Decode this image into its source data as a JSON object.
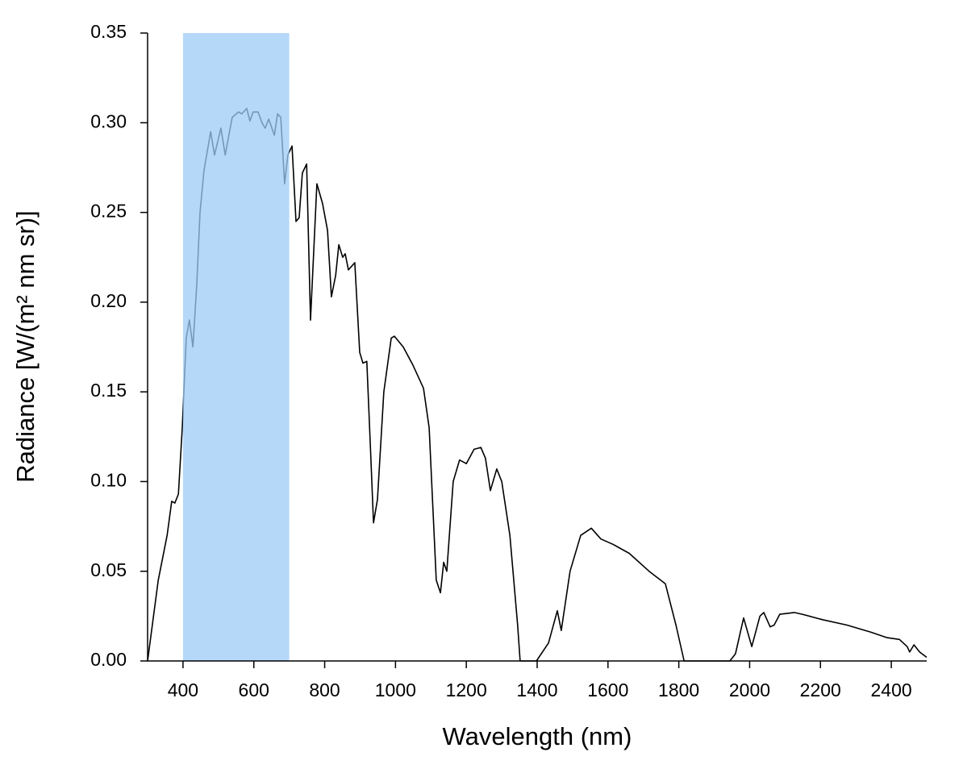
{
  "chart_data": {
    "type": "line",
    "xlabel": "Wavelength (nm)",
    "ylabel": "Radiance [W/(m² nm sr)]",
    "xlim": [
      300,
      2500
    ],
    "ylim": [
      0,
      0.35
    ],
    "xticks": [
      400,
      600,
      800,
      1000,
      1200,
      1400,
      1600,
      1800,
      2000,
      2200,
      2400
    ],
    "yticks": [
      {
        "value": 0,
        "label": "0.00"
      },
      {
        "value": 0.05,
        "label": "0.05"
      },
      {
        "value": 0.1,
        "label": "0.10"
      },
      {
        "value": 0.15,
        "label": "0.15"
      },
      {
        "value": 0.2,
        "label": "0.20"
      },
      {
        "value": 0.25,
        "label": "0.25"
      },
      {
        "value": 0.3,
        "label": "0.30"
      },
      {
        "value": 0.35,
        "label": "0.35"
      }
    ],
    "highlight": {
      "xmin": 400,
      "xmax": 700,
      "color": "#9ccbf7"
    },
    "series": [
      {
        "color": "#000000",
        "x": [
          300,
          330,
          355,
          368,
          377,
          387,
          398,
          409,
          418,
          428,
          439,
          448,
          459,
          478,
          489,
          507,
          519,
          539,
          557,
          566,
          580,
          589,
          598,
          612,
          623,
          632,
          642,
          658,
          667,
          676,
          687,
          696,
          708,
          719,
          728,
          737,
          749,
          760,
          778,
          794,
          808,
          819,
          831,
          840,
          851,
          858,
          867,
          885,
          899,
          908,
          919,
          929,
          938,
          949,
          967,
          988,
          997,
          1022,
          1049,
          1079,
          1095,
          1115,
          1127,
          1136,
          1145,
          1163,
          1181,
          1200,
          1222,
          1241,
          1254,
          1268,
          1286,
          1300,
          1323,
          1345,
          1352,
          1398,
          1432,
          1457,
          1468,
          1493,
          1523,
          1553,
          1580,
          1614,
          1660,
          1716,
          1762,
          1792,
          1815,
          1944,
          1960,
          1983,
          2006,
          2029,
          2040,
          2058,
          2069,
          2085,
          2126,
          2149,
          2206,
          2275,
          2343,
          2388,
          2423,
          2445,
          2452,
          2464,
          2480,
          2500
        ],
        "values": [
          0,
          0.045,
          0.07,
          0.089,
          0.088,
          0.093,
          0.13,
          0.18,
          0.19,
          0.175,
          0.21,
          0.25,
          0.273,
          0.295,
          0.282,
          0.297,
          0.282,
          0.303,
          0.306,
          0.305,
          0.308,
          0.301,
          0.306,
          0.306,
          0.3,
          0.297,
          0.302,
          0.293,
          0.305,
          0.303,
          0.266,
          0.282,
          0.287,
          0.245,
          0.247,
          0.272,
          0.277,
          0.19,
          0.266,
          0.255,
          0.24,
          0.203,
          0.215,
          0.232,
          0.225,
          0.227,
          0.218,
          0.222,
          0.172,
          0.166,
          0.167,
          0.12,
          0.077,
          0.09,
          0.15,
          0.18,
          0.181,
          0.175,
          0.165,
          0.152,
          0.13,
          0.045,
          0.038,
          0.055,
          0.05,
          0.1,
          0.112,
          0.11,
          0.118,
          0.119,
          0.113,
          0.095,
          0.107,
          0.1,
          0.07,
          0.02,
          0,
          0,
          0.01,
          0.028,
          0.017,
          0.05,
          0.07,
          0.074,
          0.068,
          0.065,
          0.06,
          0.05,
          0.043,
          0.02,
          0,
          0,
          0.004,
          0.024,
          0.008,
          0.025,
          0.027,
          0.019,
          0.02,
          0.026,
          0.027,
          0.026,
          0.023,
          0.02,
          0.016,
          0.013,
          0.012,
          0.008,
          0.005,
          0.009,
          0.005,
          0.002
        ]
      }
    ]
  }
}
